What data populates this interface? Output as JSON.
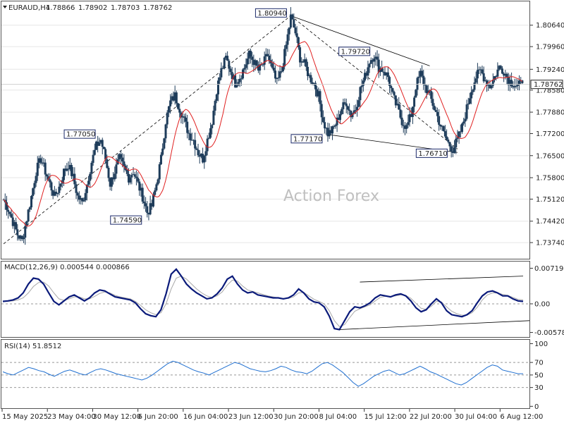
{
  "header": {
    "symbol": "EURAUD,H4",
    "open": "1.78866",
    "high": "1.78902",
    "low": "1.78703",
    "close": "1.78762"
  },
  "watermark": "Action Forex",
  "colors": {
    "candle": "#1e3c5a",
    "ma": "#e02020",
    "macd": "#0a1a7a",
    "signal": "#a8a8a8",
    "rsi": "#1f6fd0",
    "trend": "#000000",
    "grid": "#e6e6e6",
    "crosshair": "#cfcfcf"
  },
  "chart_data": [
    {
      "type": "candlestick",
      "symbol": "EURAUD",
      "timeframe": "H4",
      "ylim": [
        1.7325,
        1.8135
      ],
      "yticks": [
        "1.80640",
        "1.79960",
        "1.79240",
        "1.78580",
        "1.77880",
        "1.77200",
        "1.76500",
        "1.75800",
        "1.75120",
        "1.74420",
        "1.73740"
      ],
      "last_price_label": "1.78762",
      "x_ticks": [
        "15 May 2025",
        "23 May 04:00",
        "30 May 12:00",
        "6 Jun 20:00",
        "16 Jun 04:00",
        "23 Jun 12:00",
        "30 Jun 20:00",
        "8 Jul 04:00",
        "15 Jul 12:00",
        "22 Jul 20:00",
        "30 Jul 04:00",
        "6 Aug 12:00"
      ],
      "annotations": [
        "1.80940",
        "1.79720",
        "1.77050",
        "1.77170",
        "1.74590",
        "1.76710"
      ],
      "path": [
        1.751,
        1.748,
        1.744,
        1.74,
        1.738,
        1.745,
        1.752,
        1.76,
        1.764,
        1.76,
        1.756,
        1.752,
        1.755,
        1.76,
        1.762,
        1.758,
        1.752,
        1.75,
        1.756,
        1.763,
        1.768,
        1.77,
        1.764,
        1.756,
        1.76,
        1.764,
        1.761,
        1.758,
        1.76,
        1.756,
        1.752,
        1.747,
        1.749,
        1.756,
        1.764,
        1.776,
        1.782,
        1.784,
        1.78,
        1.776,
        1.772,
        1.77,
        1.766,
        1.764,
        1.77,
        1.776,
        1.786,
        1.792,
        1.796,
        1.792,
        1.788,
        1.79,
        1.793,
        1.797,
        1.795,
        1.792,
        1.794,
        1.797,
        1.792,
        1.788,
        1.792,
        1.8,
        1.809,
        1.804,
        1.796,
        1.794,
        1.79,
        1.788,
        1.784,
        1.776,
        1.772,
        1.773,
        1.776,
        1.78,
        1.782,
        1.778,
        1.78,
        1.786,
        1.79,
        1.795,
        1.797,
        1.793,
        1.792,
        1.79,
        1.784,
        1.78,
        1.776,
        1.774,
        1.778,
        1.787,
        1.791,
        1.787,
        1.784,
        1.78,
        1.776,
        1.772,
        1.769,
        1.767,
        1.77,
        1.774,
        1.78,
        1.786,
        1.79,
        1.792,
        1.789,
        1.787,
        1.79,
        1.793,
        1.792,
        1.789,
        1.788,
        1.787,
        1.788
      ]
    },
    {
      "type": "line",
      "name": "MACD(12,26,9)",
      "values_label": [
        "0.000544",
        "0.000866"
      ],
      "ylim": [
        -0.0067,
        0.0084
      ],
      "yticks": [
        "0.007194",
        "0.00",
        "-0.005784"
      ],
      "macd": [
        0.0005,
        0.0006,
        0.0008,
        0.0012,
        0.0022,
        0.004,
        0.0052,
        0.005,
        0.004,
        0.0022,
        0.0005,
        -0.0002,
        0.0006,
        0.0014,
        0.0018,
        0.0012,
        0.0006,
        0.0012,
        0.0022,
        0.0028,
        0.0026,
        0.002,
        0.0014,
        0.0012,
        0.001,
        0.0008,
        0.0002,
        -0.001,
        -0.002,
        -0.0024,
        -0.0026,
        -0.0012,
        0.002,
        0.006,
        0.007,
        0.0056,
        0.004,
        0.003,
        0.0022,
        0.0016,
        0.001,
        0.0012,
        0.002,
        0.0032,
        0.005,
        0.0056,
        0.004,
        0.0028,
        0.0022,
        0.0024,
        0.0018,
        0.0016,
        0.0014,
        0.0012,
        0.0012,
        0.001,
        0.0012,
        0.0018,
        0.003,
        0.0022,
        0.001,
        0.0004,
        0.0002,
        -0.0006,
        -0.0025,
        -0.005,
        -0.0052,
        -0.0034,
        -0.0016,
        -0.0006,
        -0.0008,
        -0.0004,
        0.0002,
        0.0012,
        0.0018,
        0.0016,
        0.0014,
        0.0018,
        0.002,
        0.0016,
        0.0006,
        -0.0008,
        -0.0016,
        -0.0012,
        0.0,
        0.001,
        0.0002,
        -0.0014,
        -0.0022,
        -0.0024,
        -0.0026,
        -0.0022,
        -0.0014,
        0.0002,
        0.0016,
        0.0024,
        0.0026,
        0.0022,
        0.0016,
        0.0016,
        0.001,
        0.0006,
        0.0005
      ],
      "signal": [
        0.0005,
        0.0005,
        0.0006,
        0.0008,
        0.0012,
        0.0022,
        0.0035,
        0.0043,
        0.0044,
        0.0036,
        0.0022,
        0.001,
        0.0007,
        0.001,
        0.0014,
        0.0014,
        0.001,
        0.001,
        0.0015,
        0.0021,
        0.0024,
        0.0022,
        0.0017,
        0.0014,
        0.0012,
        0.001,
        0.0005,
        -0.0003,
        -0.0012,
        -0.0018,
        -0.0022,
        -0.0018,
        0.0,
        0.003,
        0.0052,
        0.0056,
        0.005,
        0.004,
        0.003,
        0.0022,
        0.0016,
        0.0013,
        0.0016,
        0.0024,
        0.0038,
        0.0048,
        0.0046,
        0.0036,
        0.0028,
        0.0025,
        0.0022,
        0.0019,
        0.0016,
        0.0014,
        0.0012,
        0.0011,
        0.0011,
        0.0014,
        0.0022,
        0.0023,
        0.0016,
        0.0009,
        0.0005,
        0.0,
        -0.0014,
        -0.0034,
        -0.0046,
        -0.0042,
        -0.0028,
        -0.0015,
        -0.001,
        -0.0006,
        -0.0002,
        0.0006,
        0.0013,
        0.0015,
        0.0015,
        0.0016,
        0.0018,
        0.0017,
        0.0011,
        0.0001,
        -0.0009,
        -0.0011,
        -0.0005,
        0.0005,
        0.0004,
        -0.0006,
        -0.0015,
        -0.002,
        -0.0023,
        -0.0023,
        -0.0018,
        -0.0007,
        0.0008,
        0.0018,
        0.0022,
        0.0022,
        0.0019,
        0.0017,
        0.0013,
        0.0009,
        0.0008
      ]
    },
    {
      "type": "line",
      "name": "RSI(14)",
      "value_label": "51.8512",
      "ylim": [
        -3,
        105
      ],
      "yticks": [
        "100",
        "70",
        "50",
        "30",
        "0"
      ],
      "values": [
        55,
        52,
        50,
        54,
        58,
        62,
        60,
        57,
        55,
        51,
        48,
        52,
        56,
        58,
        55,
        52,
        50,
        54,
        58,
        60,
        58,
        55,
        52,
        50,
        48,
        46,
        44,
        42,
        45,
        50,
        56,
        62,
        68,
        72,
        70,
        66,
        62,
        58,
        55,
        53,
        50,
        54,
        58,
        62,
        66,
        70,
        68,
        64,
        60,
        58,
        56,
        55,
        57,
        60,
        64,
        62,
        58,
        55,
        54,
        52,
        56,
        62,
        68,
        70,
        66,
        60,
        54,
        46,
        38,
        32,
        36,
        42,
        48,
        52,
        56,
        58,
        54,
        50,
        52,
        56,
        60,
        64,
        60,
        55,
        52,
        48,
        44,
        40,
        36,
        34,
        38,
        44,
        50,
        56,
        62,
        66,
        64,
        58,
        56,
        54,
        52,
        52
      ]
    }
  ]
}
